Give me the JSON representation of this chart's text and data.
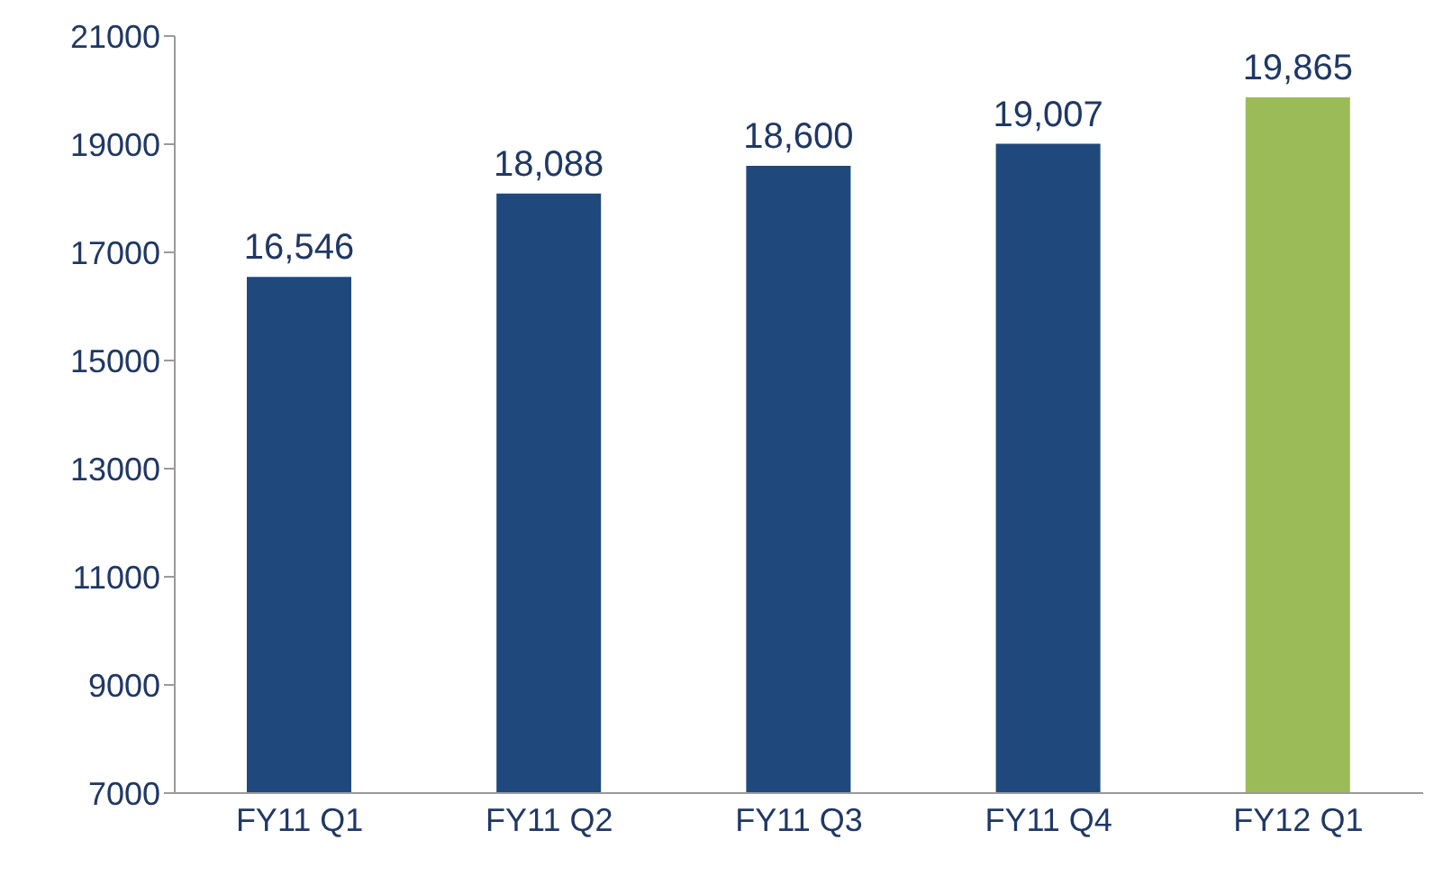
{
  "chart_data": {
    "type": "bar",
    "categories": [
      "FY11 Q1",
      "FY11 Q2",
      "FY11 Q3",
      "FY11 Q4",
      "FY12 Q1"
    ],
    "values": [
      16546,
      18088,
      18600,
      19007,
      19865
    ],
    "colors": [
      "#1f497d",
      "#1f497d",
      "#1f497d",
      "#1f497d",
      "#9bbb59"
    ],
    "value_labels": [
      "16,546",
      "18,088",
      "18,600",
      "19,007",
      "19,865"
    ],
    "ylim": [
      7000,
      21000
    ],
    "yticks": [
      7000,
      9000,
      11000,
      13000,
      15000,
      17000,
      19000,
      21000
    ],
    "grid": false
  }
}
